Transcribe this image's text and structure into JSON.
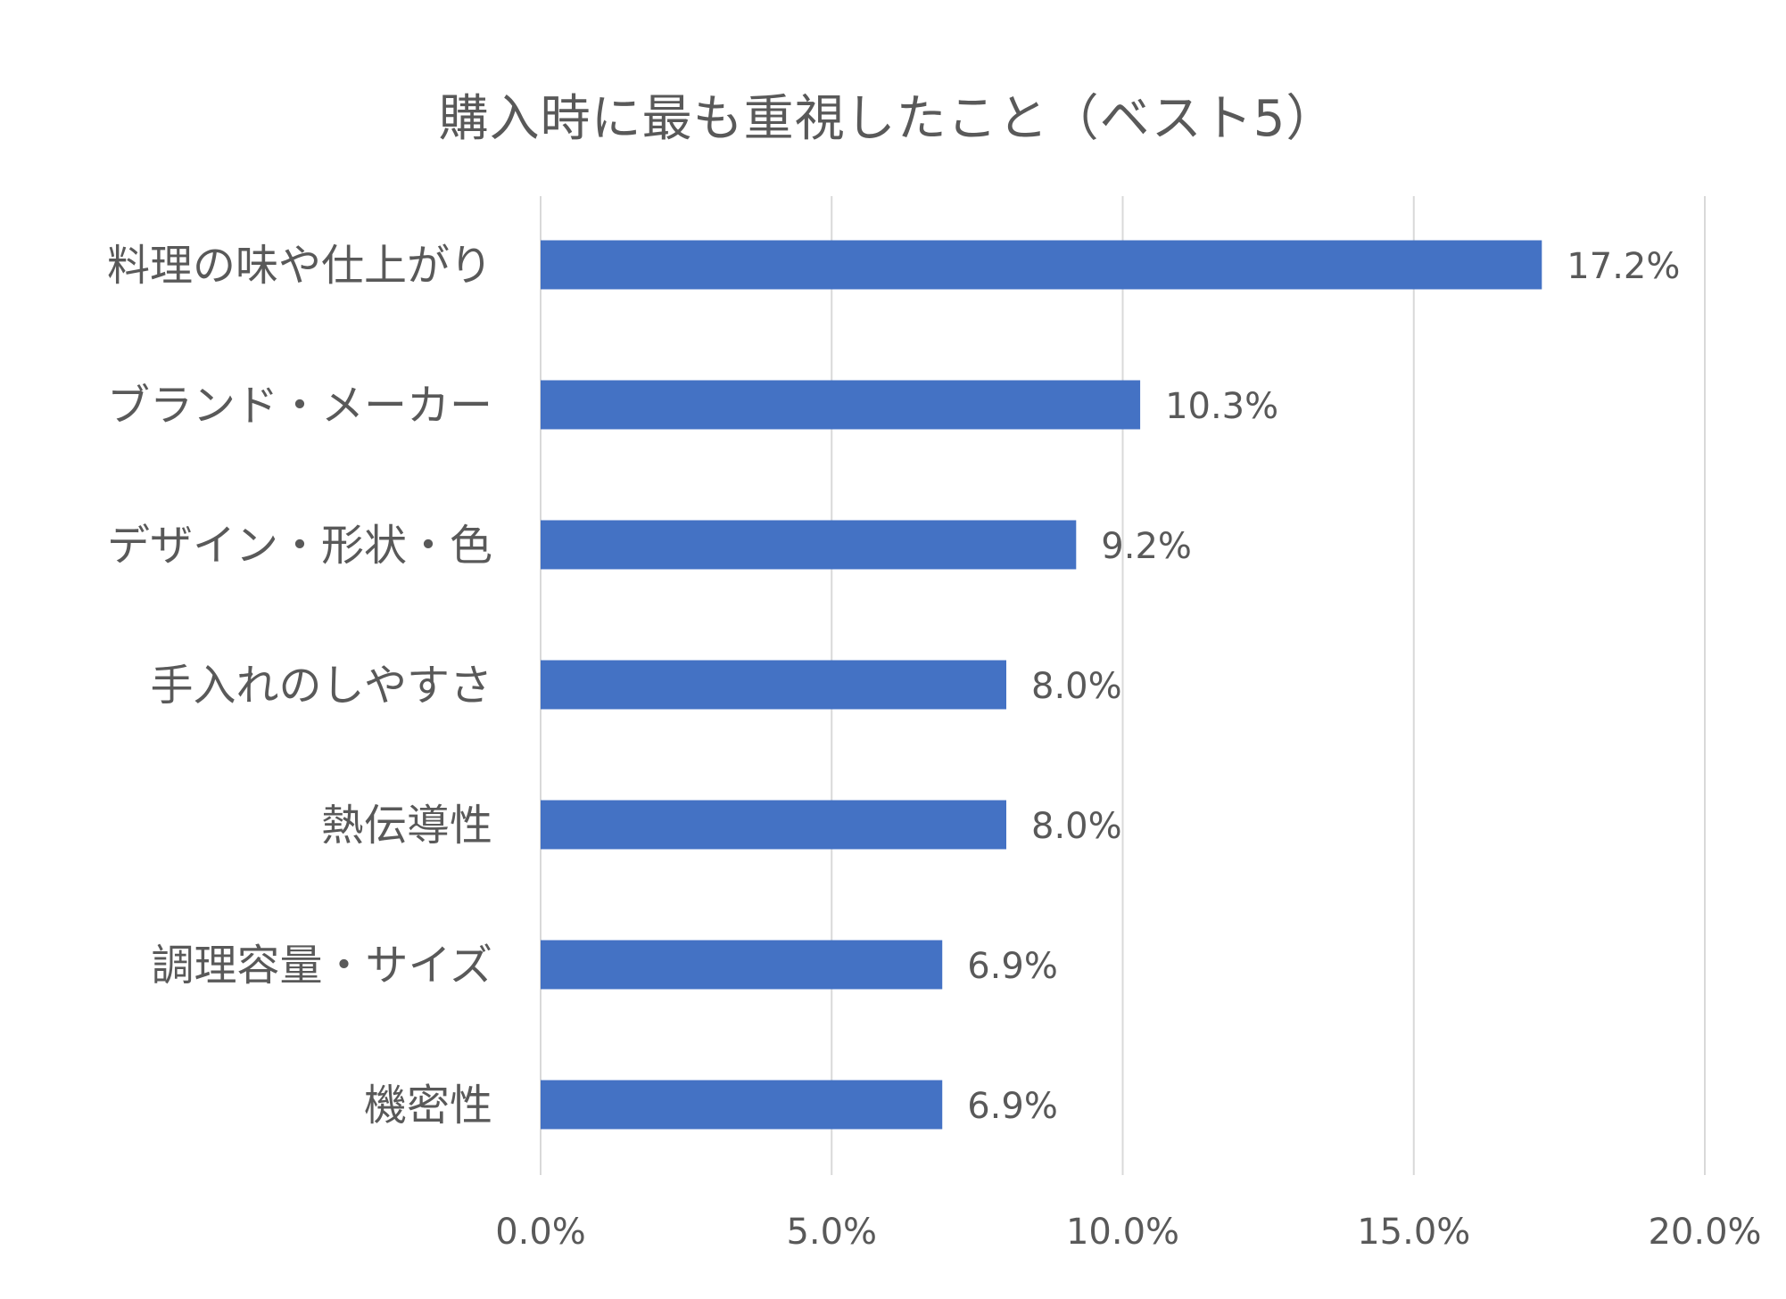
{
  "chart_data": {
    "type": "bar",
    "orientation": "horizontal",
    "title": "購入時に最も重視したこと（ベスト5）",
    "categories": [
      "料理の味や仕上がり",
      "ブランド・メーカー",
      "デザイン・形状・色",
      "手入れのしやすさ",
      "熱伝導性",
      "調理容量・サイズ",
      "機密性"
    ],
    "values": [
      17.2,
      10.3,
      9.2,
      8.0,
      8.0,
      6.9,
      6.9
    ],
    "data_labels": [
      "17.2%",
      "10.3%",
      "9.2%",
      "8.0%",
      "8.0%",
      "6.9%",
      "6.9%"
    ],
    "xlim": [
      0,
      20
    ],
    "x_ticks": [
      0,
      5,
      10,
      15,
      20
    ],
    "x_tick_labels": [
      "0.0%",
      "5.0%",
      "10.0%",
      "15.0%",
      "20.0%"
    ],
    "xlabel": "",
    "ylabel": "",
    "grid": "vertical",
    "legend": "none",
    "colors": {
      "bar": "#4472C4",
      "grid": "#D9D9D9",
      "text": "#595959",
      "title": "#595959"
    }
  }
}
